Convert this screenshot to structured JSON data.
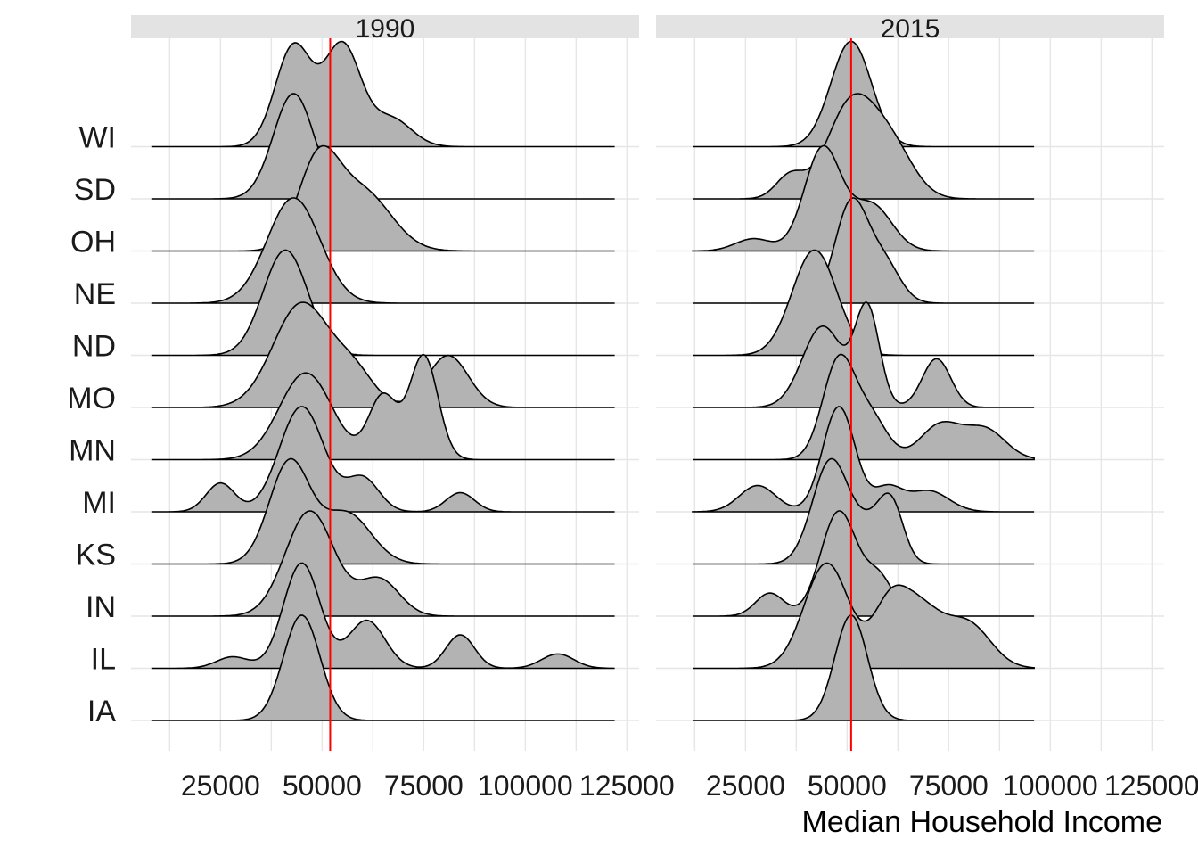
{
  "chart_data": {
    "type": "ridgeline",
    "xlabel": "Median Household Income",
    "x_ticks": [
      25000,
      50000,
      75000,
      100000,
      125000
    ],
    "x_tick_labels": [
      "25000",
      "50000",
      "75000",
      "100000",
      "125000"
    ],
    "xlim": [
      3000,
      128000
    ],
    "categories": [
      "IA",
      "IL",
      "IN",
      "KS",
      "MI",
      "MN",
      "MO",
      "ND",
      "NE",
      "OH",
      "SD",
      "WI"
    ],
    "colors": {
      "fill": "#b3b3b3",
      "stroke": "#000000",
      "reference_line": "#ff0000",
      "strip": "#e3e3e3",
      "grid": "#e6e6e6"
    },
    "grid": true,
    "panels": [
      {
        "label": "1990",
        "reference_line": 52000,
        "series": [
          {
            "name": "IA",
            "x_range": [
              8000,
              122000
            ],
            "components": [
              [
                45000,
                4500,
                1
              ]
            ]
          },
          {
            "name": "IL",
            "x_range": [
              8000,
              122000
            ],
            "components": [
              [
                28000,
                4000,
                0.12
              ],
              [
                45000,
                4500,
                1.1
              ],
              [
                61000,
                4500,
                0.5
              ],
              [
                84000,
                3500,
                0.35
              ],
              [
                108000,
                4000,
                0.15
              ]
            ]
          },
          {
            "name": "IN",
            "x_range": [
              8000,
              122000
            ],
            "components": [
              [
                47000,
                6000,
                1
              ],
              [
                64000,
                5000,
                0.35
              ]
            ]
          },
          {
            "name": "KS",
            "x_range": [
              8000,
              122000
            ],
            "components": [
              [
                42000,
                5000,
                0.9
              ],
              [
                56000,
                6000,
                0.45
              ]
            ]
          },
          {
            "name": "MI",
            "x_range": [
              8000,
              122000
            ],
            "components": [
              [
                25000,
                3500,
                0.3
              ],
              [
                45000,
                5500,
                1.1
              ],
              [
                60000,
                4000,
                0.35
              ],
              [
                84000,
                3500,
                0.2
              ]
            ]
          },
          {
            "name": "MN",
            "x_range": [
              8000,
              122000
            ],
            "components": [
              [
                46000,
                6500,
                0.75
              ],
              [
                65000,
                3500,
                0.55
              ],
              [
                75000,
                3500,
                0.9
              ]
            ]
          },
          {
            "name": "MO",
            "x_range": [
              8000,
              122000
            ],
            "components": [
              [
                45000,
                7000,
                1
              ],
              [
                58000,
                5000,
                0.3
              ],
              [
                81000,
                5000,
                0.5
              ]
            ]
          },
          {
            "name": "ND",
            "x_range": [
              8000,
              122000
            ],
            "components": [
              [
                41000,
                5500,
                1
              ]
            ]
          },
          {
            "name": "NE",
            "x_range": [
              8000,
              122000
            ],
            "components": [
              [
                43000,
                6500,
                1
              ]
            ]
          },
          {
            "name": "OH",
            "x_range": [
              8000,
              122000
            ],
            "components": [
              [
                49000,
                5000,
                0.8
              ],
              [
                60000,
                7000,
                0.55
              ]
            ]
          },
          {
            "name": "SD",
            "x_range": [
              8000,
              122000
            ],
            "components": [
              [
                43000,
                5000,
                1
              ]
            ]
          },
          {
            "name": "WI",
            "x_range": [
              8000,
              122000
            ],
            "components": [
              [
                43000,
                4500,
                0.9
              ],
              [
                55000,
                4500,
                0.9
              ],
              [
                67000,
                5000,
                0.25
              ]
            ]
          }
        ]
      },
      {
        "label": "2015",
        "reference_line": 51000,
        "series": [
          {
            "name": "IA",
            "x_range": [
              12000,
              96000
            ],
            "components": [
              [
                51000,
                4000,
                1
              ]
            ]
          },
          {
            "name": "IL",
            "x_range": [
              12000,
              96000
            ],
            "components": [
              [
                45000,
                5500,
                0.75
              ],
              [
                60000,
                4000,
                0.3
              ],
              [
                67000,
                6000,
                0.45
              ],
              [
                80000,
                5500,
                0.3
              ]
            ]
          },
          {
            "name": "IN",
            "x_range": [
              12000,
              96000
            ],
            "components": [
              [
                31000,
                3500,
                0.22
              ],
              [
                48000,
                4500,
                1
              ],
              [
                58000,
                3500,
                0.35
              ]
            ]
          },
          {
            "name": "KS",
            "x_range": [
              12000,
              96000
            ],
            "components": [
              [
                46000,
                4500,
                0.9
              ],
              [
                56000,
                4000,
                0.3
              ],
              [
                61000,
                3000,
                0.45
              ]
            ]
          },
          {
            "name": "MI",
            "x_range": [
              12000,
              96000
            ],
            "components": [
              [
                28000,
                4500,
                0.25
              ],
              [
                48000,
                4000,
                1.0
              ],
              [
                60000,
                3500,
                0.22
              ],
              [
                70000,
                5000,
                0.2
              ]
            ]
          },
          {
            "name": "MN",
            "x_range": [
              12000,
              96000
            ],
            "components": [
              [
                48000,
                4000,
                1
              ],
              [
                56000,
                4000,
                0.4
              ],
              [
                73000,
                5000,
                0.35
              ],
              [
                84000,
                5000,
                0.3
              ]
            ]
          },
          {
            "name": "MO",
            "x_range": [
              12000,
              96000
            ],
            "components": [
              [
                44000,
                5000,
                0.5
              ],
              [
                55000,
                3000,
                0.6
              ],
              [
                72000,
                3500,
                0.3
              ]
            ]
          },
          {
            "name": "ND",
            "x_range": [
              12000,
              96000
            ],
            "components": [
              [
                42000,
                5500,
                1
              ]
            ]
          },
          {
            "name": "NE",
            "x_range": [
              12000,
              96000
            ],
            "components": [
              [
                51000,
                4000,
                1
              ],
              [
                59000,
                4000,
                0.4
              ]
            ]
          },
          {
            "name": "OH",
            "x_range": [
              12000,
              96000
            ],
            "components": [
              [
                27000,
                4500,
                0.12
              ],
              [
                44000,
                4500,
                1
              ],
              [
                56000,
                5000,
                0.45
              ]
            ]
          },
          {
            "name": "SD",
            "x_range": [
              12000,
              96000
            ],
            "components": [
              [
                36000,
                3500,
                0.22
              ],
              [
                51000,
                6000,
                0.9
              ],
              [
                61000,
                5500,
                0.45
              ]
            ]
          },
          {
            "name": "WI",
            "x_range": [
              12000,
              96000
            ],
            "components": [
              [
                51000,
                5000,
                1
              ]
            ]
          }
        ]
      }
    ]
  }
}
